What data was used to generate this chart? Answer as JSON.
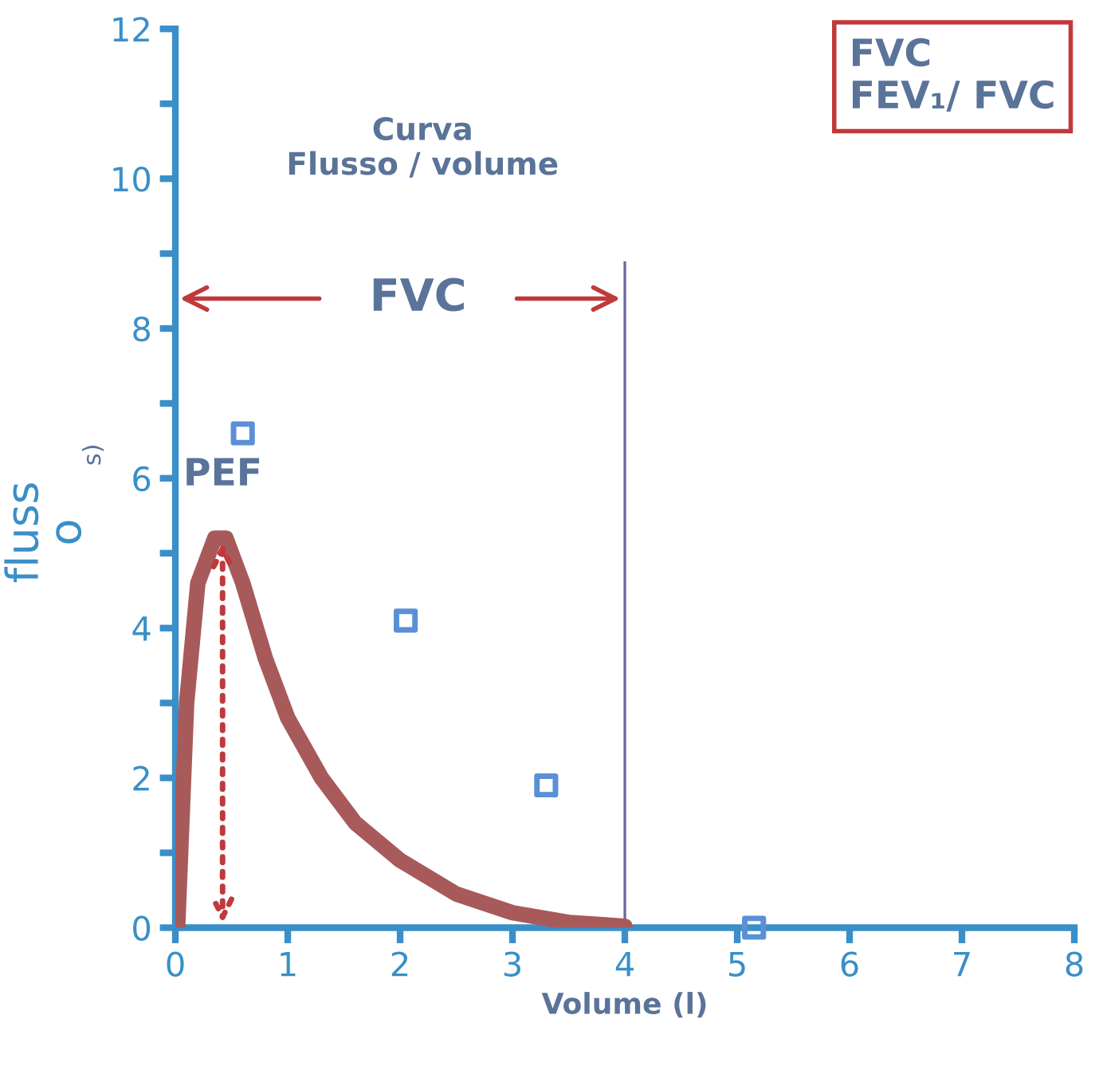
{
  "chart_data": {
    "type": "line",
    "title": "Curva\nFlusso / volume",
    "xlabel": "Volume (l)",
    "ylabel": "fluss\no",
    "x": [
      0.02,
      0.1,
      0.2,
      0.35,
      0.45,
      0.6,
      0.8,
      1.0,
      1.3,
      1.6,
      2.0,
      2.5,
      3.0,
      3.5,
      4.0
    ],
    "series": [
      {
        "color": "#a85a5a",
        "values": [
          0,
          3,
          4.6,
          5.2,
          5.2,
          4.6,
          3.6,
          2.8,
          2.0,
          1.4,
          0.9,
          0.45,
          0.2,
          0.07,
          0.02
        ]
      },
      {
        "type": "scatter",
        "color": "#5b8fd6",
        "marker": "square",
        "x": [
          0.6,
          2.05,
          3.3,
          5.15
        ],
        "values": [
          6.6,
          4.1,
          1.9,
          0
        ]
      }
    ],
    "xlim": [
      0,
      8
    ],
    "xticks": [
      0,
      1,
      2,
      3,
      4,
      5,
      6,
      7,
      8
    ],
    "ylim": [
      0,
      12
    ],
    "yticks": [
      0,
      {
        "value": 1,
        "label": null
      },
      2,
      {
        "value": 3,
        "label": null
      },
      4,
      {
        "value": 5,
        "label": null
      },
      6,
      {
        "value": 7,
        "label": null
      },
      8,
      {
        "value": 9,
        "label": null
      },
      10,
      {
        "value": 11,
        "label": null
      },
      12
    ],
    "ref_lines": [
      {
        "axis": "x",
        "value": 4,
        "color": "#6a6a9a"
      }
    ],
    "annotations": [
      "FVC",
      {
        "text": "PEF",
        "x": 0.42,
        "y": 5.2
      },
      "s)",
      "FVC\nFEV₁/ FVC"
    ],
    "grid": false,
    "legend": false
  }
}
